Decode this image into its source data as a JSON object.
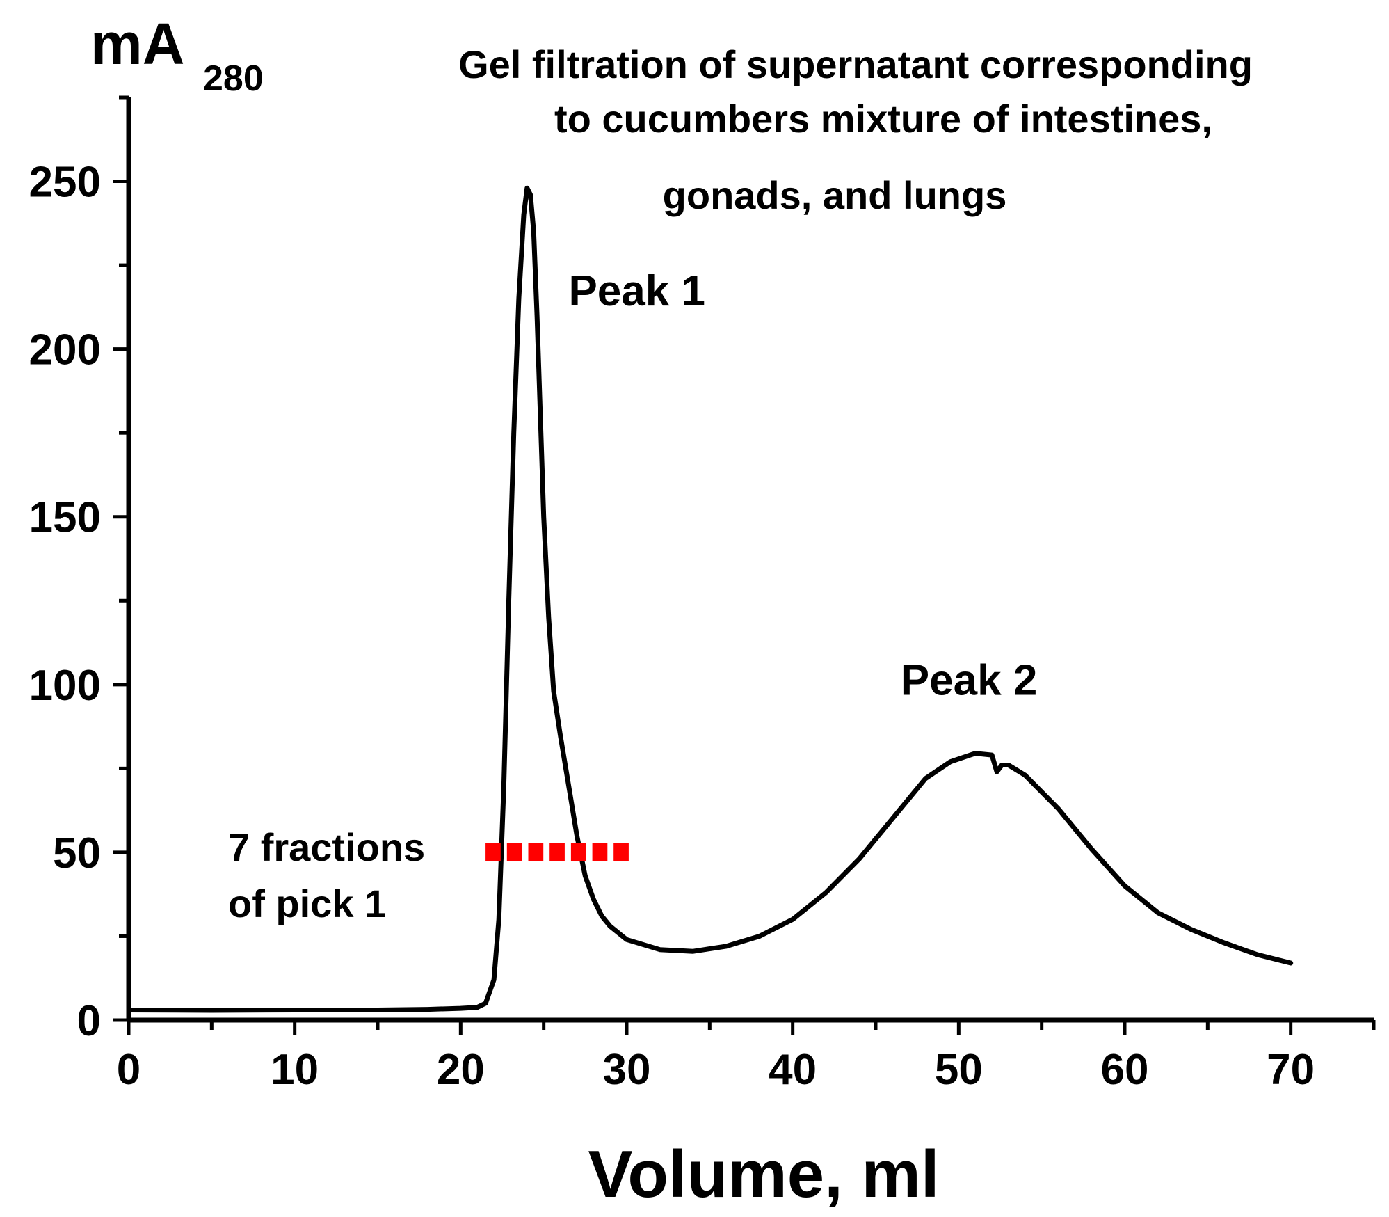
{
  "chart_data": {
    "type": "line",
    "title_lines": [
      "Gel filtration of supernatant corresponding",
      "to cucumbers mixture of intestines,",
      "gonads, and lungs"
    ],
    "ylabel": {
      "main": "mA",
      "subscript": "280"
    },
    "xlabel": "Volume, ml",
    "xlim": [
      0,
      75
    ],
    "ylim": [
      0,
      275
    ],
    "xticks": [
      0,
      10,
      20,
      30,
      40,
      50,
      60,
      70
    ],
    "xtick_labels": [
      "0",
      "10",
      "20",
      "30",
      "40",
      "50",
      "60",
      "70"
    ],
    "yticks": [
      0,
      50,
      100,
      150,
      200,
      250
    ],
    "ytick_labels": [
      "0",
      "50",
      "100",
      "150",
      "200",
      "250"
    ],
    "grid": false,
    "series": [
      {
        "name": "A280",
        "color": "#000000",
        "x": [
          0,
          5,
          10,
          15,
          18,
          20,
          21,
          21.5,
          22,
          22.3,
          22.6,
          22.9,
          23.2,
          23.5,
          23.8,
          24.0,
          24.2,
          24.4,
          24.6,
          24.8,
          25.0,
          25.3,
          25.6,
          26.0,
          26.5,
          27.0,
          27.5,
          28.0,
          28.5,
          29.0,
          30.0,
          32.0,
          34.0,
          36.0,
          38.0,
          40.0,
          42.0,
          44.0,
          46.0,
          48.0,
          49.5,
          51.0,
          52.0,
          52.3,
          52.6,
          53.0,
          54.0,
          56.0,
          58.0,
          60.0,
          62.0,
          64.0,
          66.0,
          68.0,
          70.0
        ],
        "y": [
          3,
          2.9,
          3,
          3,
          3.2,
          3.5,
          3.8,
          5,
          12,
          30,
          70,
          125,
          175,
          215,
          240,
          248,
          246,
          235,
          210,
          180,
          150,
          120,
          98,
          85,
          70,
          55,
          43,
          36,
          31,
          28,
          24,
          21,
          20.5,
          22,
          25,
          30,
          38,
          48,
          60,
          72,
          77,
          79.5,
          79,
          74,
          76,
          76,
          73,
          63,
          51,
          40,
          32,
          27,
          23,
          19.5,
          17
        ]
      }
    ],
    "annotations": [
      {
        "text": "Peak 1",
        "x": 26.5,
        "y": 213
      },
      {
        "text": "Peak 2",
        "x": 46.5,
        "y": 97
      }
    ],
    "fractions": {
      "label_lines": [
        "7 fractions",
        "of pick 1"
      ],
      "color": "#ff0000",
      "label_color": "#e6158a",
      "y": 50,
      "x_start": 21.5,
      "x_end": 30.5,
      "count": 7
    }
  }
}
